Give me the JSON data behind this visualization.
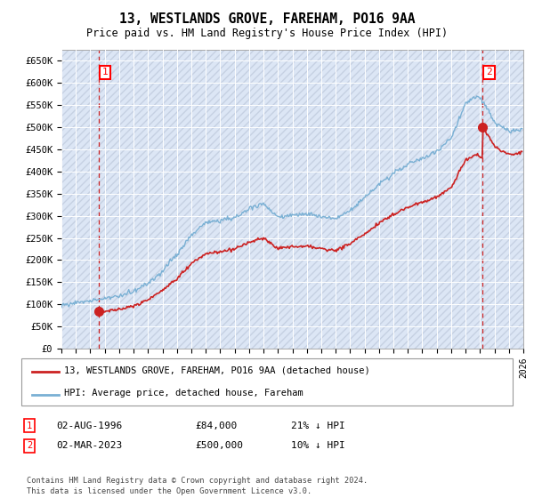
{
  "title": "13, WESTLANDS GROVE, FAREHAM, PO16 9AA",
  "subtitle": "Price paid vs. HM Land Registry's House Price Index (HPI)",
  "xlim_start": 1994,
  "xlim_end": 2026,
  "ylim_min": 0,
  "ylim_max": 675000,
  "yticks": [
    0,
    50000,
    100000,
    150000,
    200000,
    250000,
    300000,
    350000,
    400000,
    450000,
    500000,
    550000,
    600000,
    650000
  ],
  "ytick_labels": [
    "£0",
    "£50K",
    "£100K",
    "£150K",
    "£200K",
    "£250K",
    "£300K",
    "£350K",
    "£400K",
    "£450K",
    "£500K",
    "£550K",
    "£600K",
    "£650K"
  ],
  "xticks": [
    1994,
    1995,
    1996,
    1997,
    1998,
    1999,
    2000,
    2001,
    2002,
    2003,
    2004,
    2005,
    2006,
    2007,
    2008,
    2009,
    2010,
    2011,
    2012,
    2013,
    2014,
    2015,
    2016,
    2017,
    2018,
    2019,
    2020,
    2021,
    2022,
    2023,
    2024,
    2025,
    2026
  ],
  "background_color": "#dce6f5",
  "hpi_color": "#7ab0d4",
  "price_color": "#cc2222",
  "sale1_year": 1996.58,
  "sale1_price": 84000,
  "sale2_year": 2023.16,
  "sale2_price": 500000,
  "legend_label1": "13, WESTLANDS GROVE, FAREHAM, PO16 9AA (detached house)",
  "legend_label2": "HPI: Average price, detached house, Fareham",
  "note1_date": "02-AUG-1996",
  "note1_price": "£84,000",
  "note1_hpi": "21% ↓ HPI",
  "note2_date": "02-MAR-2023",
  "note2_price": "£500,000",
  "note2_hpi": "10% ↓ HPI",
  "footer": "Contains HM Land Registry data © Crown copyright and database right 2024.\nThis data is licensed under the Open Government Licence v3.0."
}
